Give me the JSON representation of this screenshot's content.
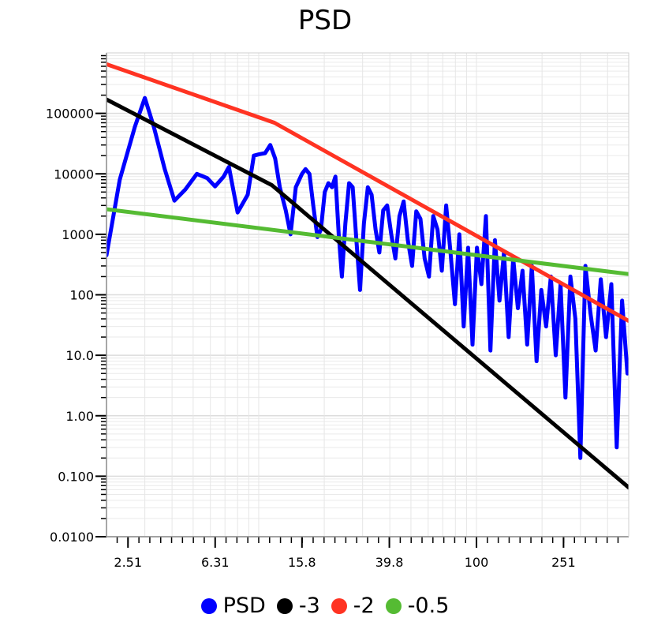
{
  "chart_data": {
    "type": "line",
    "title": "PSD",
    "x_scale": "log",
    "y_scale": "log",
    "xlim": [
      2,
      500
    ],
    "ylim": [
      0.01,
      1000000
    ],
    "grid": true,
    "legend_placement": "bottom",
    "x_tick_labels": [
      {
        "value": 2.51,
        "label": "2.51"
      },
      {
        "value": 6.31,
        "label": "6.31"
      },
      {
        "value": 15.8,
        "label": "15.8"
      },
      {
        "value": 39.8,
        "label": "39.8"
      },
      {
        "value": 100,
        "label": "100"
      },
      {
        "value": 251,
        "label": "251"
      }
    ],
    "y_tick_labels": [
      {
        "value": 100000,
        "label": "100000"
      },
      {
        "value": 10000,
        "label": "10000"
      },
      {
        "value": 1000,
        "label": "1000"
      },
      {
        "value": 100,
        "label": "100"
      },
      {
        "value": 10,
        "label": "10.0"
      },
      {
        "value": 1,
        "label": "1.00"
      },
      {
        "value": 0.1,
        "label": "0.100"
      },
      {
        "value": 0.01,
        "label": "0.0100"
      }
    ],
    "series": [
      {
        "name": "PSD",
        "color": "#0000ff",
        "points": [
          [
            2.0,
            450
          ],
          [
            2.3,
            8000
          ],
          [
            2.7,
            60000
          ],
          [
            3.0,
            180000
          ],
          [
            3.3,
            60000
          ],
          [
            3.7,
            12000
          ],
          [
            4.1,
            3600
          ],
          [
            4.6,
            5500
          ],
          [
            5.2,
            10000
          ],
          [
            5.8,
            8500
          ],
          [
            6.3,
            6200
          ],
          [
            6.9,
            9000
          ],
          [
            7.3,
            13000
          ],
          [
            8.0,
            2300
          ],
          [
            8.9,
            4500
          ],
          [
            9.5,
            20000
          ],
          [
            10.0,
            21000
          ],
          [
            10.7,
            22000
          ],
          [
            11.3,
            30000
          ],
          [
            11.9,
            18000
          ],
          [
            12.5,
            6000
          ],
          [
            13.3,
            2500
          ],
          [
            14.0,
            1000
          ],
          [
            14.8,
            6000
          ],
          [
            15.8,
            10000
          ],
          [
            16.4,
            12000
          ],
          [
            17.1,
            10000
          ],
          [
            17.8,
            3000
          ],
          [
            18.6,
            900
          ],
          [
            19.3,
            1200
          ],
          [
            20.1,
            5000
          ],
          [
            20.9,
            7000
          ],
          [
            21.7,
            6000
          ],
          [
            22.5,
            9000
          ],
          [
            23.3,
            1000
          ],
          [
            24.1,
            200
          ],
          [
            25.0,
            1500
          ],
          [
            26.0,
            7000
          ],
          [
            27.0,
            6000
          ],
          [
            28.1,
            800
          ],
          [
            29.2,
            120
          ],
          [
            30.4,
            1500
          ],
          [
            31.7,
            6000
          ],
          [
            33.0,
            4500
          ],
          [
            34.4,
            1200
          ],
          [
            35.8,
            500
          ],
          [
            37.3,
            2500
          ],
          [
            38.9,
            3000
          ],
          [
            40.6,
            1000
          ],
          [
            42.4,
            400
          ],
          [
            44.3,
            2000
          ],
          [
            46.3,
            3500
          ],
          [
            48.4,
            800
          ],
          [
            50.6,
            300
          ],
          [
            52.9,
            2400
          ],
          [
            55.3,
            1800
          ],
          [
            57.8,
            400
          ],
          [
            60.5,
            200
          ],
          [
            63.3,
            2000
          ],
          [
            66.2,
            1200
          ],
          [
            69.3,
            250
          ],
          [
            72.6,
            3000
          ],
          [
            76.0,
            500
          ],
          [
            79.6,
            70
          ],
          [
            83.4,
            1000
          ],
          [
            87.3,
            30
          ],
          [
            91.5,
            600
          ],
          [
            95.9,
            15
          ],
          [
            100.5,
            600
          ],
          [
            105.4,
            150
          ],
          [
            110.5,
            2000
          ],
          [
            115.9,
            12
          ],
          [
            121.5,
            800
          ],
          [
            127.5,
            80
          ],
          [
            133.8,
            500
          ],
          [
            140.5,
            20
          ],
          [
            147.5,
            400
          ],
          [
            154.9,
            60
          ],
          [
            162.7,
            250
          ],
          [
            170.9,
            15
          ],
          [
            179.6,
            300
          ],
          [
            188.8,
            8
          ],
          [
            198.5,
            120
          ],
          [
            208.8,
            30
          ],
          [
            219.6,
            200
          ],
          [
            231.1,
            10
          ],
          [
            243.3,
            150
          ],
          [
            256.2,
            2
          ],
          [
            269.9,
            200
          ],
          [
            284.4,
            40
          ],
          [
            299.8,
            0.2
          ],
          [
            316.2,
            300
          ],
          [
            333.7,
            50
          ],
          [
            352.4,
            12
          ],
          [
            372.3,
            180
          ],
          [
            393.5,
            20
          ],
          [
            416.1,
            150
          ],
          [
            440.3,
            0.3
          ],
          [
            466.0,
            80
          ],
          [
            493.5,
            5
          ]
        ]
      },
      {
        "name": "-3",
        "color": "#000000",
        "points": [
          [
            2.0,
            170000
          ],
          [
            11.5,
            6500
          ],
          [
            500,
            0.065
          ]
        ]
      },
      {
        "name": "-2",
        "color": "#ff3322",
        "points": [
          [
            2.0,
            650000
          ],
          [
            11.8,
            70000
          ],
          [
            500,
            37
          ]
        ]
      },
      {
        "name": "-0.5",
        "color": "#55bb33",
        "points": [
          [
            2.0,
            2600
          ],
          [
            500,
            220
          ]
        ]
      }
    ]
  }
}
